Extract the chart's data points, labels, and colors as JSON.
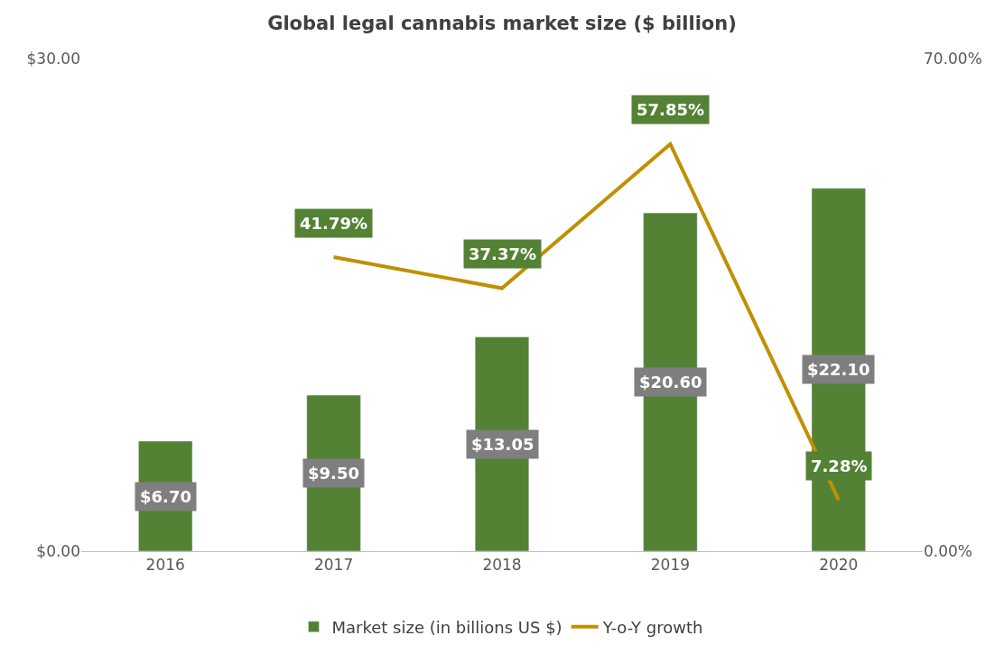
{
  "chart_data": {
    "type": "bar",
    "title": "Global legal cannabis market size ($ billion)",
    "categories": [
      "2016",
      "2017",
      "2018",
      "2019",
      "2020"
    ],
    "series": [
      {
        "name": "Market size (in billions US $)",
        "color": "#548235",
        "values": [
          6.7,
          9.5,
          13.05,
          20.6,
          22.1
        ],
        "value_labels": [
          "$6.70",
          "$9.50",
          "$13.05",
          "$20.60",
          "$22.10"
        ]
      },
      {
        "name": "Y-o-Y growth",
        "type": "line",
        "axis": "y2",
        "color": "#bf9000",
        "values": [
          null,
          41.79,
          37.37,
          57.85,
          7.28
        ],
        "value_labels": [
          null,
          "41.79%",
          "37.37%",
          "57.85%",
          "7.28%"
        ]
      }
    ],
    "ylim": [
      0,
      30
    ],
    "yticks": [
      {
        "value": 0,
        "label": "$0.00"
      },
      {
        "value": 30,
        "label": "$30.00"
      }
    ],
    "y2lim": [
      0,
      70
    ],
    "y2ticks": [
      {
        "value": 0,
        "label": "0.00%"
      },
      {
        "value": 70,
        "label": "70.00%"
      }
    ],
    "legend": "bottom",
    "marker": "none",
    "line_style": "solid"
  }
}
